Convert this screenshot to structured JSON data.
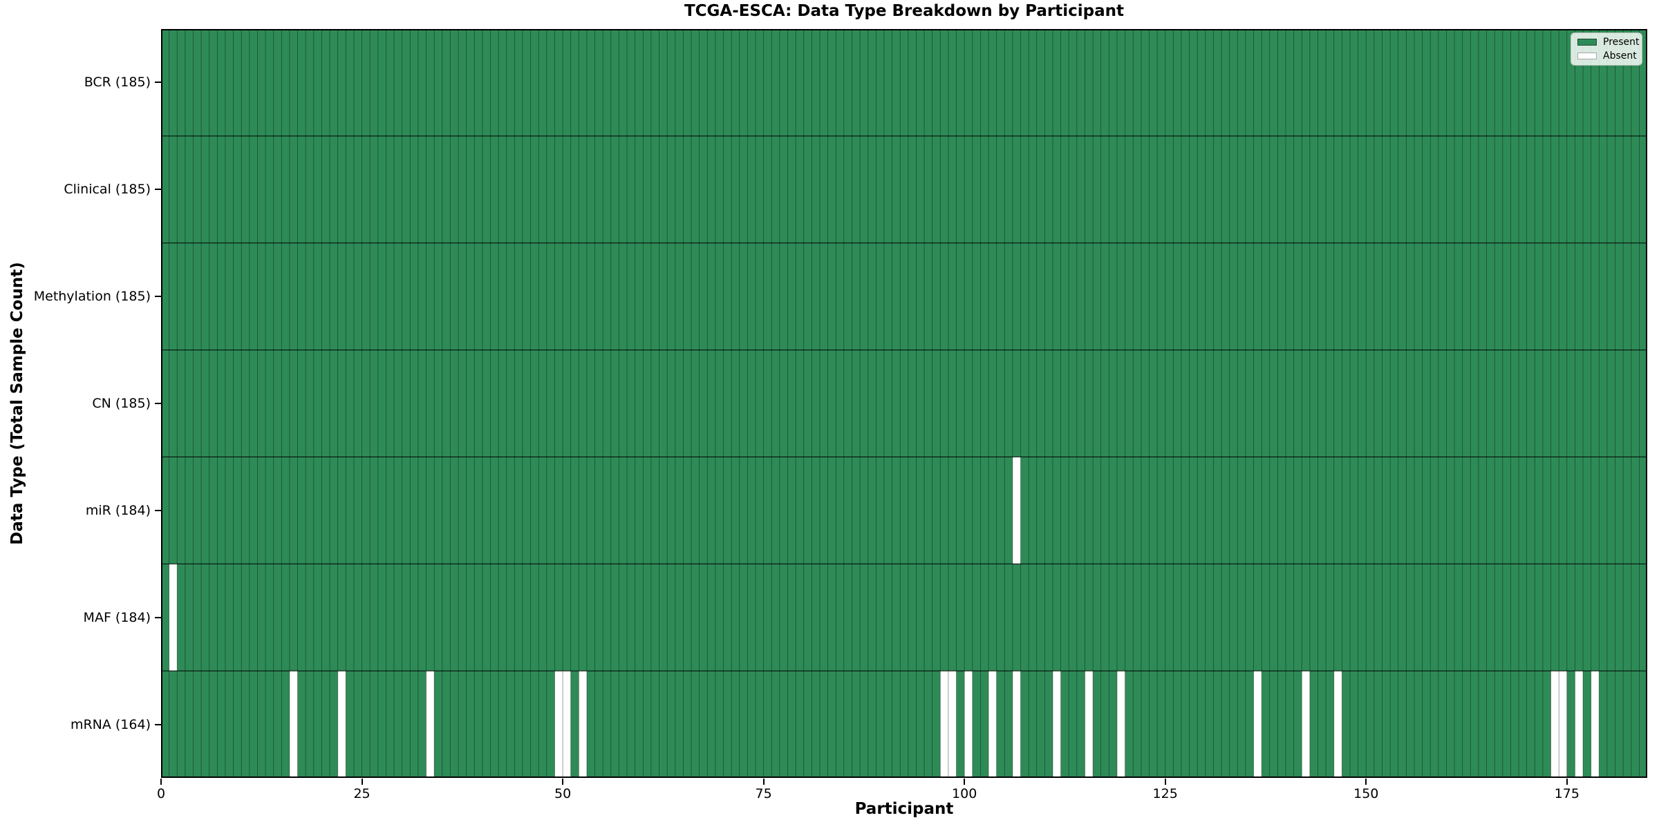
{
  "title": "TCGA-ESCA: Data Type Breakdown by Participant",
  "axes": {
    "xlabel": "Participant",
    "ylabel": "Data Type (Total Sample Count)",
    "x_ticks": [
      0,
      25,
      50,
      75,
      100,
      125,
      150,
      175
    ]
  },
  "legend": {
    "present_label": "Present",
    "absent_label": "Absent"
  },
  "colors": {
    "present": "#2e8b57",
    "absent": "#ffffff",
    "cell_edge": "rgba(0,0,0,0.45)",
    "row_divider": "#000000",
    "plot_border": "#000000"
  },
  "chart_data": {
    "type": "heatmap",
    "title": "TCGA-ESCA: Data Type Breakdown by Participant",
    "xlabel": "Participant",
    "ylabel": "Data Type (Total Sample Count)",
    "x_range": [
      0,
      185
    ],
    "n_participants": 185,
    "x_ticks": [
      0,
      25,
      50,
      75,
      100,
      125,
      150,
      175
    ],
    "legend_entries": [
      "Present",
      "Absent"
    ],
    "legend_position": "upper right",
    "present_color": "#2e8b57",
    "absent_color": "#ffffff",
    "rows": [
      {
        "label": "BCR (185)",
        "data_type": "BCR",
        "total": 185,
        "absent": []
      },
      {
        "label": "Clinical (185)",
        "data_type": "Clinical",
        "total": 185,
        "absent": []
      },
      {
        "label": "Methylation (185)",
        "data_type": "Methylation",
        "total": 185,
        "absent": []
      },
      {
        "label": "CN (185)",
        "data_type": "CN",
        "total": 185,
        "absent": []
      },
      {
        "label": "miR (184)",
        "data_type": "miR",
        "total": 184,
        "absent": [
          106
        ]
      },
      {
        "label": "MAF (184)",
        "data_type": "MAF",
        "total": 184,
        "absent": [
          1
        ]
      },
      {
        "label": "mRNA (164)",
        "data_type": "mRNA",
        "total": 164,
        "absent": [
          16,
          22,
          33,
          49,
          50,
          52,
          97,
          98,
          100,
          103,
          106,
          111,
          115,
          119,
          136,
          142,
          146,
          173,
          174,
          176,
          178
        ]
      }
    ]
  }
}
